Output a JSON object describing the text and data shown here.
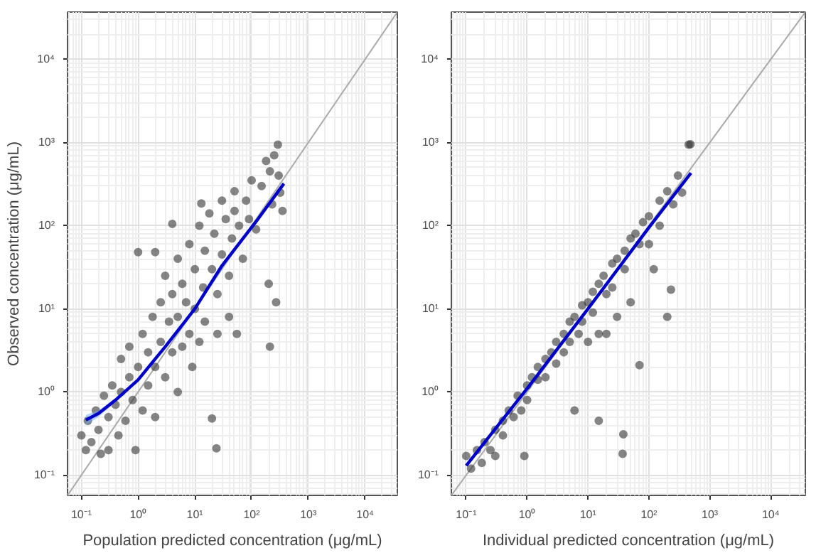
{
  "chart_data": [
    {
      "type": "scatter",
      "xlabel": "Population predicted concentration (μg/mL)",
      "ylabel": "Observed concentration (μg/mL)",
      "log": "xy",
      "grid": true,
      "xlim": [
        0.057,
        37000
      ],
      "ylim": [
        0.057,
        37000
      ],
      "xticks": [
        {
          "value": 0.1,
          "label": "10⁻¹"
        },
        {
          "value": 1,
          "label": "10⁰"
        },
        {
          "value": 10,
          "label": "10¹"
        },
        {
          "value": 100,
          "label": "10²"
        },
        {
          "value": 1000,
          "label": "10³"
        },
        {
          "value": 10000,
          "label": "10⁴"
        }
      ],
      "yticks": [
        {
          "value": 0.1,
          "label": "10⁻¹"
        },
        {
          "value": 1,
          "label": "10⁰"
        },
        {
          "value": 10,
          "label": "10¹"
        },
        {
          "value": 100,
          "label": "10²"
        },
        {
          "value": 1000,
          "label": "10³"
        },
        {
          "value": 10000,
          "label": "10⁴"
        }
      ],
      "series": [
        {
          "type": "line",
          "color": "#aaaaaa",
          "x": [
            0.057,
            37000
          ],
          "values": [
            0.057,
            37000
          ]
        },
        {
          "marker": "circle",
          "color": "#333333",
          "x": [
            0.1,
            0.12,
            0.13,
            0.15,
            0.18,
            0.2,
            0.22,
            0.25,
            0.3,
            0.3,
            0.35,
            0.4,
            0.45,
            0.5,
            0.5,
            0.6,
            0.7,
            0.7,
            0.8,
            0.9,
            1.0,
            1.0,
            1.2,
            1.2,
            1.5,
            1.5,
            1.8,
            2.0,
            2.0,
            2.0,
            2.5,
            2.5,
            3,
            3,
            3.5,
            4,
            4,
            4,
            5,
            5,
            5,
            6,
            6,
            7,
            8,
            8,
            9,
            10,
            10,
            12,
            12,
            13,
            14,
            15,
            15,
            18,
            20,
            20,
            22,
            24,
            25,
            25,
            30,
            30,
            35,
            40,
            40,
            45,
            50,
            50,
            55,
            60,
            70,
            80,
            90,
            100,
            120,
            150,
            180,
            200,
            210,
            210,
            230,
            250,
            270,
            290,
            300,
            320,
            350
          ],
          "values": [
            0.3,
            0.2,
            0.45,
            0.25,
            0.6,
            0.35,
            0.18,
            0.9,
            0.5,
            0.2,
            1.2,
            0.7,
            0.3,
            2.5,
            1.0,
            0.45,
            3.5,
            1.5,
            0.8,
            0.2,
            48,
            2.0,
            5,
            0.6,
            3,
            1.2,
            8,
            48,
            2,
            0.5,
            12,
            4,
            1.5,
            25,
            7,
            105,
            3,
            15,
            1,
            40,
            8,
            20,
            3.5,
            12,
            60,
            5,
            2,
            10,
            30,
            100,
            4,
            185,
            18,
            50,
            7,
            140,
            30,
            0.48,
            80,
            0.21,
            5,
            15,
            200,
            45,
            120,
            25,
            8,
            70,
            260,
            150,
            5,
            100,
            40,
            200,
            120,
            350,
            90,
            300,
            600,
            20,
            3.5,
            450,
            180,
            700,
            12,
            940,
            400,
            250,
            150
          ]
        },
        {
          "type": "line",
          "color": "#0000cc",
          "x": [
            0.12,
            0.2,
            0.4,
            1,
            3,
            10,
            30,
            120,
            370
          ],
          "values": [
            0.46,
            0.55,
            0.8,
            1.4,
            3.5,
            10,
            33,
            112,
            320
          ],
          "lower": [
            0.4,
            0.5,
            0.76,
            1.35,
            3.4,
            9.7,
            32,
            108,
            300
          ],
          "upper": [
            0.53,
            0.6,
            0.84,
            1.45,
            3.6,
            10.3,
            34,
            116,
            340
          ]
        }
      ]
    },
    {
      "type": "scatter",
      "xlabel": "Individual predicted concentration (μg/mL)",
      "log": "xy",
      "grid": true,
      "xlim": [
        0.057,
        37000
      ],
      "ylim": [
        0.057,
        37000
      ],
      "xticks": [
        {
          "value": 0.1,
          "label": "10⁻¹"
        },
        {
          "value": 1,
          "label": "10⁰"
        },
        {
          "value": 10,
          "label": "10¹"
        },
        {
          "value": 100,
          "label": "10²"
        },
        {
          "value": 1000,
          "label": "10³"
        },
        {
          "value": 10000,
          "label": "10⁴"
        }
      ],
      "yticks": [
        {
          "value": 0.1,
          "label": "10⁻¹"
        },
        {
          "value": 1,
          "label": "10⁰"
        },
        {
          "value": 10,
          "label": "10¹"
        },
        {
          "value": 100,
          "label": "10²"
        },
        {
          "value": 1000,
          "label": "10³"
        },
        {
          "value": 10000,
          "label": "10⁴"
        }
      ],
      "series": [
        {
          "type": "line",
          "color": "#aaaaaa",
          "x": [
            0.057,
            37000
          ],
          "values": [
            0.057,
            37000
          ]
        },
        {
          "marker": "circle",
          "color": "#333333",
          "x": [
            0.1,
            0.12,
            0.15,
            0.18,
            0.2,
            0.25,
            0.3,
            0.3,
            0.4,
            0.4,
            0.5,
            0.6,
            0.7,
            0.8,
            0.9,
            1,
            1,
            1.2,
            1.5,
            1.5,
            2,
            2,
            2.5,
            3,
            3,
            4,
            4,
            5,
            5,
            6,
            6,
            7,
            8,
            8,
            10,
            10,
            12,
            12,
            15,
            15,
            15,
            18,
            20,
            20,
            25,
            25,
            30,
            30,
            37,
            38,
            40,
            40,
            50,
            50,
            60,
            70,
            70,
            80,
            100,
            100,
            120,
            150,
            150,
            200,
            200,
            230,
            250,
            300,
            350,
            450,
            480
          ],
          "values": [
            0.17,
            0.12,
            0.2,
            0.14,
            0.25,
            0.2,
            0.35,
            0.17,
            0.45,
            0.3,
            0.6,
            0.5,
            0.9,
            0.6,
            0.17,
            1.2,
            0.8,
            1.5,
            1.4,
            2,
            2.5,
            1.5,
            3,
            4,
            2.2,
            5,
            3,
            7,
            4,
            8,
            0.6,
            5,
            11,
            7,
            12,
            4,
            16,
            9,
            20,
            0.45,
            5,
            25,
            15,
            5,
            35,
            18,
            40,
            8,
            0.18,
            0.31,
            50,
            30,
            70,
            12,
            80,
            2.1,
            60,
            110,
            130,
            60,
            30,
            200,
            100,
            260,
            8,
            17,
            180,
            400,
            250,
            940,
            950
          ]
        },
        {
          "type": "line",
          "color": "#0000cc",
          "x": [
            0.1,
            1,
            10,
            100,
            490
          ],
          "values": [
            0.13,
            1.1,
            10,
            95,
            430
          ]
        }
      ]
    }
  ]
}
